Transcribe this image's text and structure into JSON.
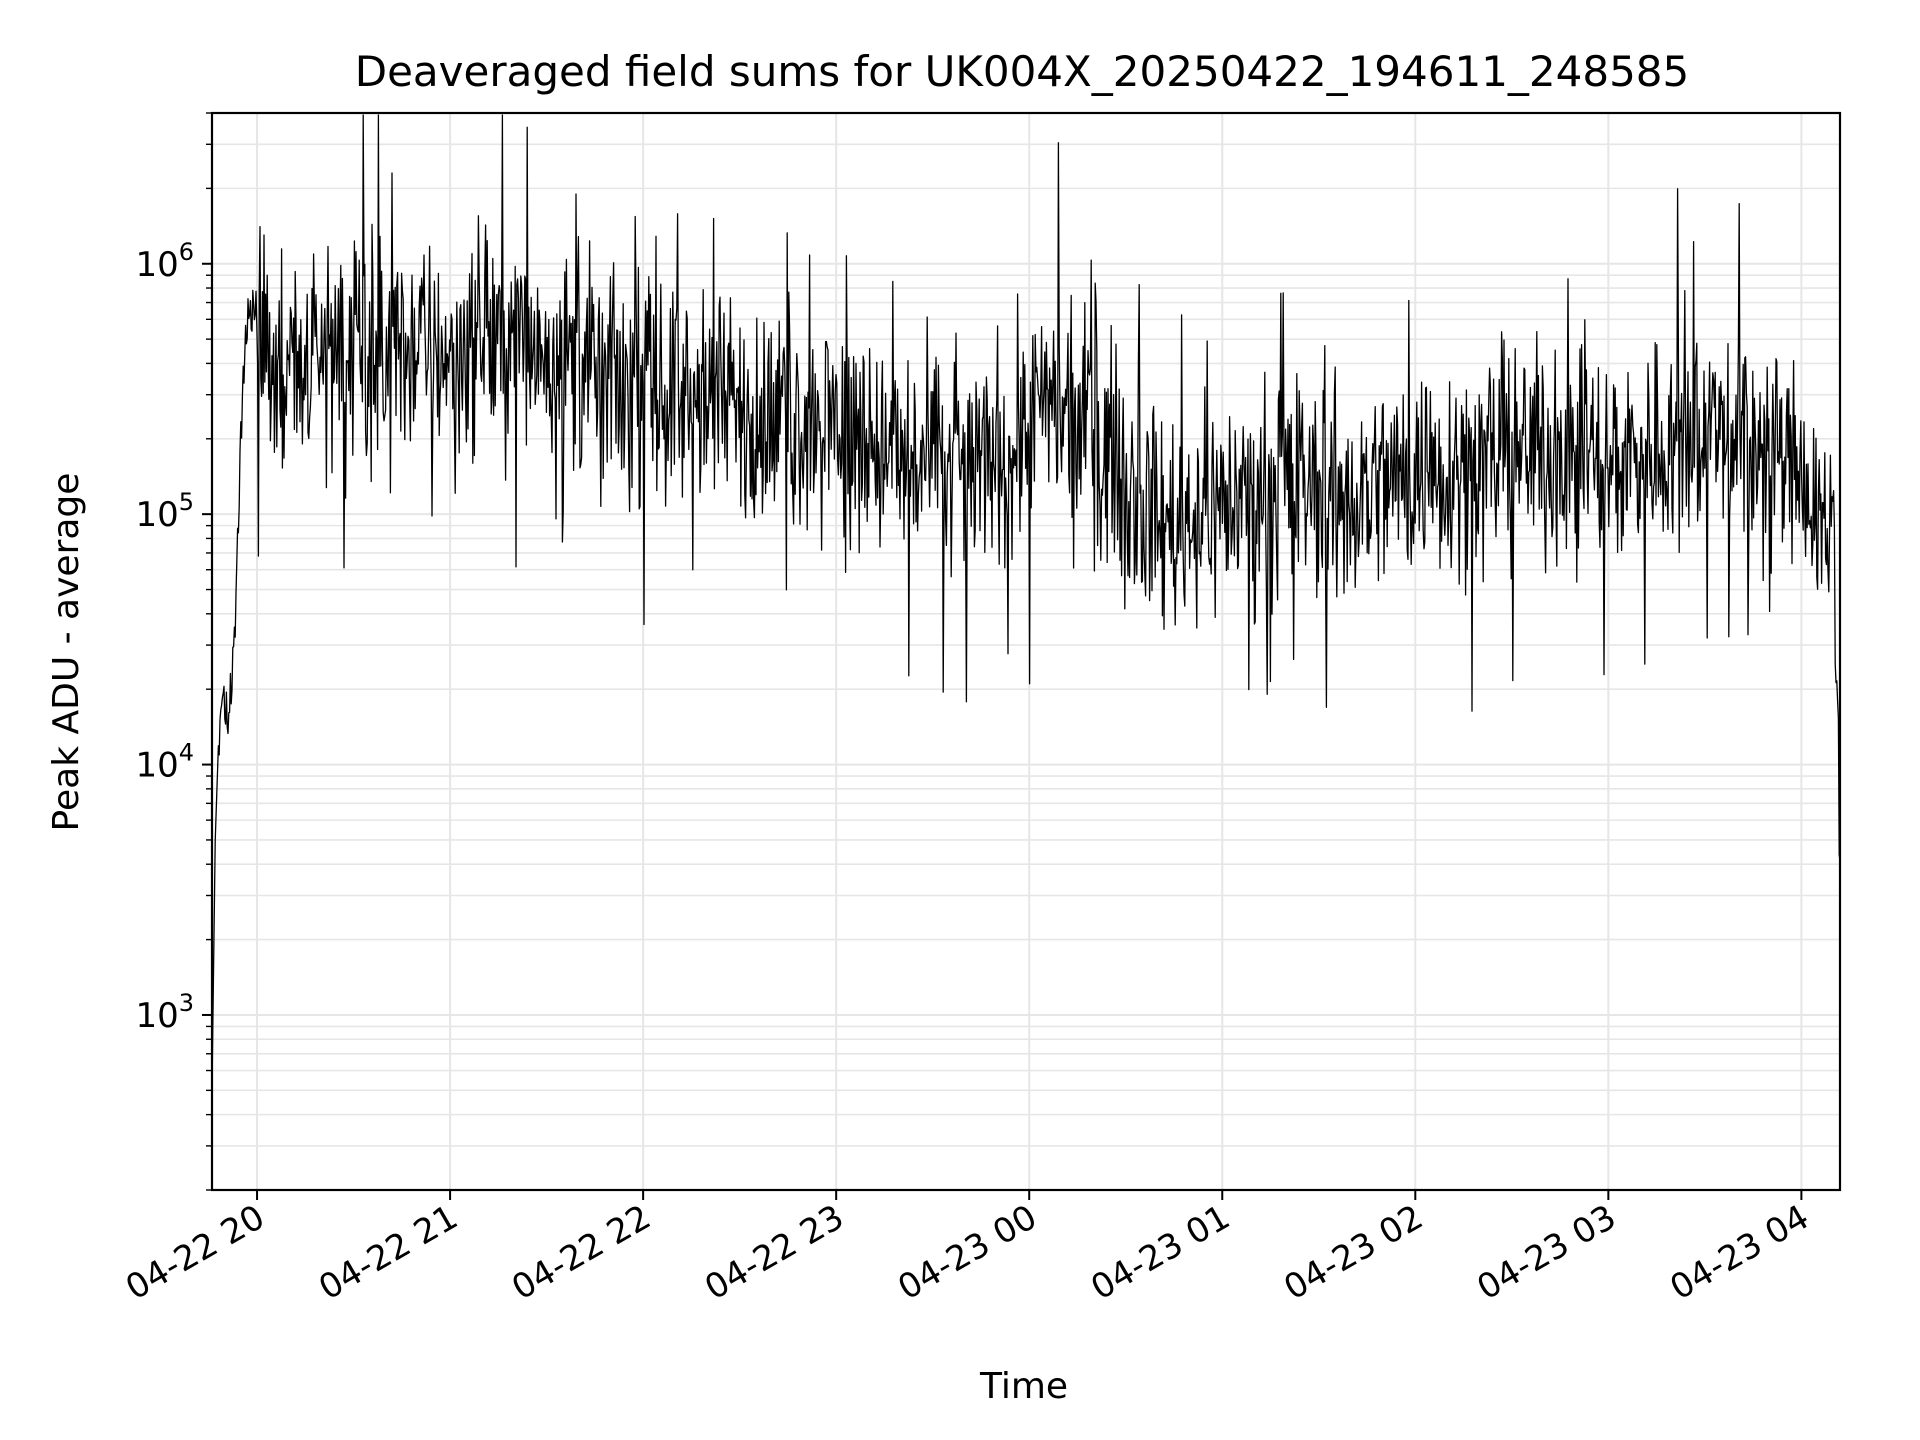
{
  "chart_data": {
    "type": "line",
    "title": "Deaveraged field sums for UK004X_20250422_194611_248585",
    "xlabel": "Time",
    "ylabel": "Peak ADU - average",
    "yscale": "log",
    "ylim": [
      200,
      4000000
    ],
    "xlim": [
      "2025-04-22T19:46",
      "2025-04-23T04:12"
    ],
    "grid": true,
    "line_color": "#000000",
    "x_ticks": [
      "04-22 20",
      "04-22 21",
      "04-22 22",
      "04-22 23",
      "04-23 00",
      "04-23 01",
      "04-23 02",
      "04-23 03",
      "04-23 04"
    ],
    "x_tick_times": [
      "2025-04-22T20:00",
      "2025-04-22T21:00",
      "2025-04-22T22:00",
      "2025-04-22T23:00",
      "2025-04-23T00:00",
      "2025-04-23T01:00",
      "2025-04-23T02:00",
      "2025-04-23T03:00",
      "2025-04-23T04:00"
    ],
    "y_ticks": [
      {
        "value": 1000,
        "base": "10",
        "exp": "3"
      },
      {
        "value": 10000,
        "base": "10",
        "exp": "4"
      },
      {
        "value": 100000,
        "base": "10",
        "exp": "5"
      },
      {
        "value": 1000000,
        "base": "10",
        "exp": "6"
      }
    ],
    "series": [
      {
        "x": [
          "2025-04-22T19:46",
          "2025-04-22T19:47",
          "2025-04-22T19:48",
          "2025-04-22T19:49",
          "2025-04-22T19:50",
          "2025-04-22T19:51",
          "2025-04-22T19:52",
          "2025-04-22T19:53",
          "2025-04-22T19:54",
          "2025-04-22T19:55",
          "2025-04-22T19:56",
          "2025-04-22T19:57",
          "2025-04-22T19:58",
          "2025-04-22T20:00",
          "2025-04-22T20:05",
          "2025-04-22T20:10",
          "2025-04-22T20:20",
          "2025-04-22T20:30",
          "2025-04-22T20:40",
          "2025-04-22T20:50",
          "2025-04-22T21:00",
          "2025-04-22T21:10",
          "2025-04-22T21:20",
          "2025-04-22T21:30",
          "2025-04-22T21:40",
          "2025-04-22T21:50",
          "2025-04-22T22:00",
          "2025-04-22T22:20",
          "2025-04-22T22:40",
          "2025-04-22T23:00",
          "2025-04-22T23:20",
          "2025-04-22T23:40",
          "2025-04-23T00:00",
          "2025-04-23T00:20",
          "2025-04-23T00:40",
          "2025-04-23T01:00",
          "2025-04-23T01:20",
          "2025-04-23T01:40",
          "2025-04-23T02:00",
          "2025-04-23T02:20",
          "2025-04-23T02:40",
          "2025-04-23T03:00",
          "2025-04-23T03:20",
          "2025-04-23T03:40",
          "2025-04-23T04:00",
          "2025-04-23T04:05",
          "2025-04-23T04:10",
          "2025-04-23T04:12"
        ],
        "y": [
          500,
          5000,
          12000,
          15000,
          18000,
          16000,
          20000,
          30000,
          80000,
          200000,
          400000,
          600000,
          650000,
          700000,
          450000,
          350000,
          450000,
          450000,
          420000,
          480000,
          450000,
          500000,
          500000,
          480000,
          400000,
          350000,
          300000,
          280000,
          230000,
          250000,
          160000,
          150000,
          250000,
          220000,
          90000,
          110000,
          130000,
          120000,
          150000,
          160000,
          180000,
          160000,
          200000,
          220000,
          150000,
          100000,
          90000,
          5000
        ]
      }
    ]
  }
}
